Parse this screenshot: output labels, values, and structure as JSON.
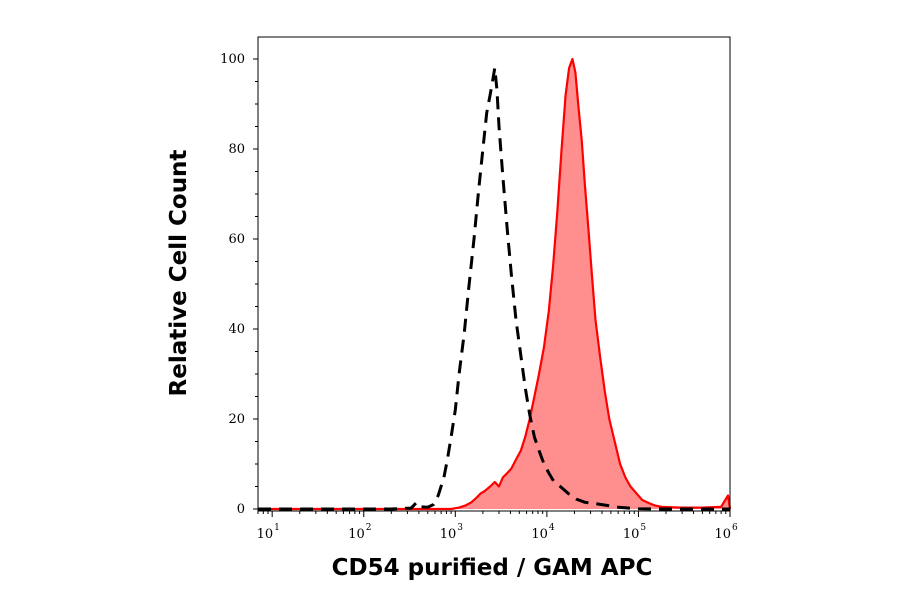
{
  "chart_data": {
    "type": "area",
    "xlabel": "CD54 purified / GAM APC",
    "ylabel": "Relative Cell Count",
    "x_scale": "log",
    "xlim": [
      7,
      1000000
    ],
    "ylim": [
      0,
      100
    ],
    "x_ticks": [
      {
        "base": "10",
        "exp": "1",
        "value": 10
      },
      {
        "base": "10",
        "exp": "2",
        "value": 100
      },
      {
        "base": "10",
        "exp": "3",
        "value": 1000
      },
      {
        "base": "10",
        "exp": "4",
        "value": 10000
      },
      {
        "base": "10",
        "exp": "5",
        "value": 100000
      },
      {
        "base": "10",
        "exp": "6",
        "value": 1000000
      }
    ],
    "y_ticks": [
      "0",
      "20",
      "40",
      "60",
      "80",
      "100"
    ],
    "grid": false,
    "series": [
      {
        "style": "dashed-outline",
        "color": "#000000",
        "x": [
          7,
          200,
          330,
          380,
          420,
          500,
          580,
          650,
          750,
          820,
          900,
          1000,
          1100,
          1250,
          1400,
          1600,
          1800,
          2000,
          2200,
          2400,
          2550,
          2700,
          2850,
          3000,
          3300,
          3700,
          4100,
          4600,
          5200,
          5800,
          6500,
          7300,
          8200,
          9300,
          10500,
          12000,
          14000,
          17000,
          21000,
          26000,
          34000,
          45000,
          60000,
          80000,
          100000,
          150000,
          250000,
          500000,
          1000000
        ],
        "values": [
          0,
          0,
          0.2,
          1.5,
          0.5,
          0.4,
          1.0,
          3.0,
          7,
          11,
          16,
          22,
          30,
          39,
          49,
          60,
          71,
          80,
          88,
          92,
          95,
          98,
          93,
          85,
          74,
          62,
          52,
          42,
          34,
          27,
          21,
          16,
          13,
          10,
          8,
          6,
          5,
          3.5,
          2.2,
          1.5,
          1.2,
          0.8,
          0.4,
          0.2,
          0.1,
          0,
          0,
          0,
          0
        ]
      },
      {
        "style": "filled",
        "color": "#ff0000",
        "fill": "#ff8f8f",
        "x": [
          7,
          900,
          1100,
          1300,
          1500,
          1700,
          1900,
          2100,
          2400,
          2700,
          3000,
          3300,
          3700,
          4100,
          4600,
          5200,
          5800,
          6500,
          7300,
          8200,
          9300,
          10500,
          11700,
          13000,
          14500,
          16000,
          17500,
          19000,
          20500,
          22000,
          24000,
          26000,
          28500,
          31000,
          34000,
          38000,
          43000,
          48000,
          55000,
          63000,
          72000,
          82000,
          95000,
          110000,
          130000,
          150000,
          180000,
          220000,
          300000,
          500000,
          800000,
          950000,
          1000000
        ],
        "values": [
          0,
          0,
          0.3,
          0.8,
          1.5,
          2.5,
          3.5,
          4,
          5,
          6,
          5,
          7,
          8,
          9,
          11,
          13,
          16,
          20,
          25,
          30,
          36,
          44,
          54,
          66,
          80,
          92,
          98,
          100,
          97,
          90,
          82,
          72,
          62,
          52,
          42,
          34,
          26,
          20,
          15,
          10,
          7,
          5,
          3.5,
          2,
          1.3,
          0.8,
          0.5,
          0.4,
          0.3,
          0.3,
          0.5,
          3,
          0
        ]
      }
    ]
  }
}
